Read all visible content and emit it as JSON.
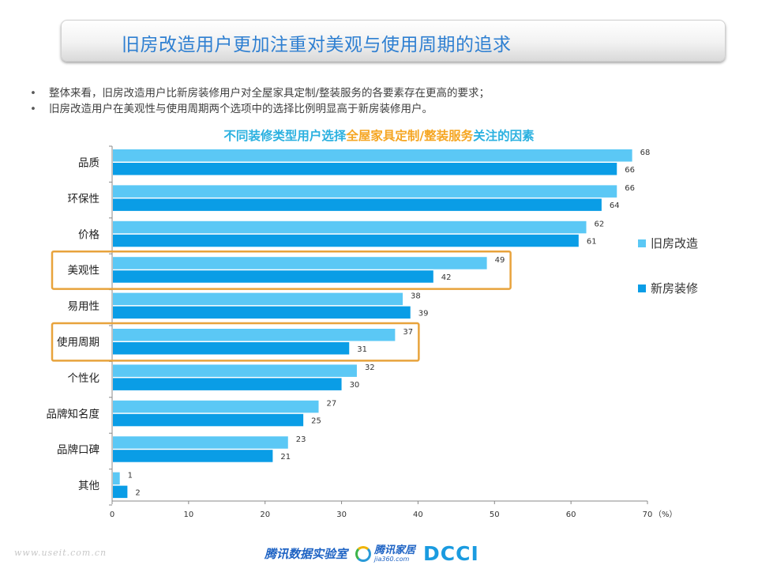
{
  "header": {
    "title": "旧房改造用户更加注重对美观与使用周期的追求"
  },
  "bullets": [
    "整体来看，旧房改造用户比新房装修用户对全屋家具定制/整装服务的各要素存在更高的要求；",
    "旧房改造用户在美观性与使用周期两个选项中的选择比例明显高于新房装修用户。"
  ],
  "bullet_glyph": "•",
  "chart_title": {
    "part1": "不同装修类型用户选择",
    "part2": "全屋家具定制/整装服务",
    "part3": "关注的因素"
  },
  "chart_data": {
    "type": "bar",
    "orientation": "horizontal",
    "categories": [
      "品质",
      "环保性",
      "价格",
      "美观性",
      "易用性",
      "使用周期",
      "个性化",
      "品牌知名度",
      "品牌口碑",
      "其他"
    ],
    "series": [
      {
        "name": "旧房改造",
        "values": [
          68,
          66,
          62,
          49,
          38,
          37,
          32,
          27,
          23,
          1
        ],
        "color": "#5bc8f5"
      },
      {
        "name": "新房装修",
        "values": [
          66,
          64,
          61,
          42,
          39,
          31,
          30,
          25,
          21,
          2
        ],
        "color": "#0a9de6"
      }
    ],
    "xlim": [
      0,
      70
    ],
    "xticks": [
      0,
      10,
      20,
      30,
      40,
      50,
      60,
      70
    ],
    "x_unit_label": "（%）",
    "highlighted_categories": [
      "美观性",
      "使用周期"
    ],
    "highlight_color": "#e8a33c",
    "legend_position": "right",
    "grid": false
  },
  "footer": {
    "watermark": "www.useit.com.cn",
    "logo_tencent_data": "腾讯数据实验室",
    "logo_tencent_jia": "腾讯家居",
    "logo_tencent_jia_sub": "jia360.com",
    "logo_dcci": "DCCI"
  }
}
